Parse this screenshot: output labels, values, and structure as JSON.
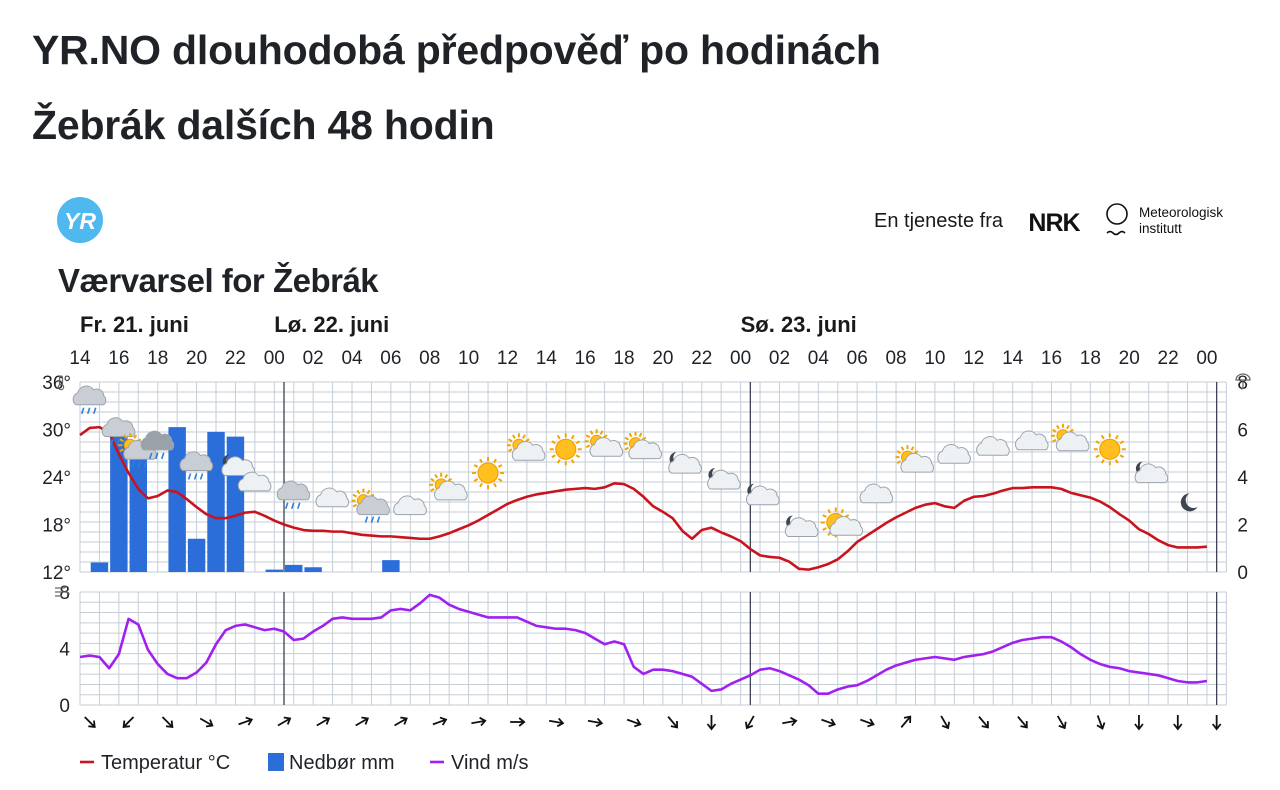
{
  "page": {
    "title_line1": "YR.NO dlouhodobá předpověď po hodinách",
    "title_line2": "Žebrák dalších 48 hodin"
  },
  "widget": {
    "logo_text": "YR",
    "service_label": "En tjeneste fra",
    "nrk_logo_text": "NRK",
    "met_logo_line1": "Meteorologisk",
    "met_logo_line2": "institutt",
    "heading": "Værvarsel for Žebrák"
  },
  "colors": {
    "temperature": "#c8141e",
    "precipitation": "#2b6ed9",
    "wind": "#a020f0",
    "grid": "#c5cdd6",
    "midnight_line": "#3a4452",
    "yr_logo": "#4fb8ef"
  },
  "chart_data": {
    "type": "line",
    "days": [
      {
        "label": "Fr. 21. juni",
        "start_hour_index": 0
      },
      {
        "label": "Lø. 22. juni",
        "start_hour_index": 10
      },
      {
        "label": "Sø. 23. juni",
        "start_hour_index": 34
      }
    ],
    "time_tick_labels": [
      "14",
      "16",
      "18",
      "20",
      "22",
      "00",
      "02",
      "04",
      "06",
      "08",
      "10",
      "12",
      "14",
      "16",
      "18",
      "20",
      "22",
      "00",
      "02",
      "04",
      "06",
      "08",
      "10",
      "12",
      "14",
      "16",
      "18",
      "20",
      "22",
      "00"
    ],
    "temperature_axis": {
      "ticks": [
        12,
        18,
        24,
        30,
        36
      ],
      "unit_suffix": "°",
      "range": [
        12,
        36
      ]
    },
    "precipitation_axis": {
      "ticks": [
        0,
        2,
        4,
        6,
        8
      ],
      "range": [
        0,
        8
      ]
    },
    "wind_axis": {
      "ticks": [
        0,
        4,
        8
      ],
      "range": [
        0,
        8
      ]
    },
    "hours_from_14": [
      0,
      0.5,
      1,
      1.5,
      2,
      2.5,
      3,
      3.5,
      4,
      4.5,
      5,
      5.5,
      6,
      6.5,
      7,
      7.5,
      8,
      8.5,
      9,
      9.5,
      10,
      10.5,
      11,
      11.5,
      12,
      12.5,
      13,
      13.5,
      14,
      14.5,
      15,
      15.5,
      16,
      16.5,
      17,
      17.5,
      18,
      18.5,
      19,
      19.5,
      20,
      20.5,
      21,
      21.5,
      22,
      22.5,
      23,
      23.5,
      24,
      24.5,
      25,
      25.5,
      26,
      26.5,
      27,
      27.5,
      28,
      28.5,
      29,
      29.5,
      30,
      30.5,
      31,
      31.5,
      32,
      32.5,
      33,
      33.5,
      34,
      34.5,
      35,
      35.5,
      36,
      36.5,
      37,
      37.5,
      38,
      38.5,
      39,
      39.5,
      40,
      40.5,
      41,
      41.5,
      42,
      42.5,
      43,
      43.5,
      44,
      44.5,
      45,
      45.5,
      46,
      46.5,
      47,
      47.5,
      48,
      48.5,
      49,
      49.5,
      50,
      50.5,
      51,
      51.5,
      52,
      52.5,
      53,
      53.5,
      54,
      54.5,
      55,
      55.5,
      56,
      56.5,
      57,
      57.5,
      58
    ],
    "temperature": [
      29.3,
      30.2,
      30.3,
      29.6,
      26.9,
      24.5,
      22.5,
      21.3,
      21.6,
      22.3,
      22.1,
      21.2,
      20.2,
      19.3,
      18.8,
      18.8,
      19.1,
      19.5,
      19.6,
      19.1,
      18.5,
      18,
      17.6,
      17.3,
      17.2,
      17.2,
      17.1,
      17.1,
      16.9,
      16.7,
      16.6,
      16.5,
      16.5,
      16.4,
      16.3,
      16.2,
      16.2,
      16.5,
      16.9,
      17.4,
      17.9,
      18.5,
      19.2,
      19.9,
      20.6,
      21.1,
      21.5,
      21.8,
      22,
      22.2,
      22.4,
      22.5,
      22.6,
      22.5,
      22.7,
      23.2,
      23.1,
      22.5,
      21.5,
      20.3,
      19.6,
      18.8,
      17.2,
      16.2,
      17.3,
      17.6,
      17,
      16.5,
      15.9,
      14.9,
      14.1,
      13.9,
      13.8,
      13.3,
      12.4,
      12.3,
      12.6,
      13,
      13.6,
      14.6,
      15.8,
      16.6,
      17.4,
      18.2,
      18.9,
      19.5,
      20.1,
      20.5,
      20.7,
      20.3,
      20.1,
      21,
      21.5,
      21.6,
      21.9,
      22.3,
      22.6,
      22.6,
      22.7,
      22.7,
      22.7,
      22.5,
      22,
      21.7,
      21.4,
      20.9,
      20.2,
      19.3,
      18.5,
      17.4,
      16.8,
      16,
      15.4,
      15.1,
      15.1,
      15.1,
      15.2
    ],
    "precipitation_hours": [
      1,
      2,
      3,
      4,
      5,
      6,
      7,
      8,
      10,
      11,
      12,
      13,
      14,
      15,
      16,
      17,
      18
    ],
    "precipitation": [
      0.4,
      5.7,
      5.5,
      0,
      6.1,
      1.4,
      5.9,
      5.7,
      0.1,
      0.3,
      0.2,
      0,
      0,
      0,
      0.5,
      0,
      0
    ],
    "wind": [
      3.4,
      3.5,
      3.4,
      2.6,
      3.6,
      6.1,
      5.7,
      3.9,
      2.9,
      2.2,
      1.9,
      1.9,
      2.3,
      3,
      4.3,
      5.3,
      5.6,
      5.7,
      5.5,
      5.3,
      5.4,
      5.2,
      4.6,
      4.7,
      5.2,
      5.6,
      6.1,
      6.2,
      6.1,
      6.1,
      6.1,
      6.2,
      6.7,
      6.8,
      6.7,
      7.2,
      7.8,
      7.6,
      7.1,
      6.8,
      6.6,
      6.4,
      6.2,
      6.2,
      6.2,
      6.2,
      5.9,
      5.6,
      5.5,
      5.4,
      5.4,
      5.3,
      5.1,
      4.7,
      4.3,
      4.5,
      4.3,
      2.7,
      2.2,
      2.5,
      2.5,
      2.4,
      2.2,
      2,
      1.5,
      1,
      1.1,
      1.5,
      1.8,
      2.1,
      2.5,
      2.6,
      2.4,
      2.1,
      1.8,
      1.4,
      0.8,
      0.8,
      1.1,
      1.3,
      1.4,
      1.7,
      2.1,
      2.5,
      2.8,
      3,
      3.2,
      3.3,
      3.4,
      3.3,
      3.2,
      3.4,
      3.5,
      3.6,
      3.8,
      4.1,
      4.4,
      4.6,
      4.7,
      4.8,
      4.8,
      4.5,
      4.1,
      3.6,
      3.2,
      2.9,
      2.7,
      2.6,
      2.4,
      2.3,
      2.2,
      2.1,
      1.9,
      1.7,
      1.6,
      1.6,
      1.7
    ],
    "weather_symbols": [
      {
        "hour": 0.5,
        "kind": "rain",
        "temp": 33.5
      },
      {
        "hour": 2,
        "kind": "rain",
        "temp": 29.5
      },
      {
        "hour": 3,
        "kind": "partly-sunny-rain",
        "temp": 27
      },
      {
        "hour": 4,
        "kind": "rain-heavy-cloud",
        "temp": 27.8
      },
      {
        "hour": 6,
        "kind": "rain",
        "temp": 25.2
      },
      {
        "hour": 8,
        "kind": "partly-night",
        "temp": 25.2
      },
      {
        "hour": 9,
        "kind": "cloudy",
        "temp": 23
      },
      {
        "hour": 11,
        "kind": "rain",
        "temp": 21.5
      },
      {
        "hour": 13,
        "kind": "cloudy",
        "temp": 21
      },
      {
        "hour": 15,
        "kind": "partly-sunny-rain",
        "temp": 20
      },
      {
        "hour": 17,
        "kind": "cloudy",
        "temp": 20
      },
      {
        "hour": 19,
        "kind": "partly-sunny",
        "temp": 22
      },
      {
        "hour": 21,
        "kind": "sun",
        "temp": 24.5
      },
      {
        "hour": 23,
        "kind": "partly-sunny",
        "temp": 27
      },
      {
        "hour": 25,
        "kind": "sun",
        "temp": 27.5
      },
      {
        "hour": 27,
        "kind": "partly-sunny",
        "temp": 27.5
      },
      {
        "hour": 29,
        "kind": "partly-sunny",
        "temp": 27.2
      },
      {
        "hour": 31,
        "kind": "partly-night",
        "temp": 25.5
      },
      {
        "hour": 33,
        "kind": "partly-night",
        "temp": 23.5
      },
      {
        "hour": 35,
        "kind": "partly-night",
        "temp": 21.5
      },
      {
        "hour": 37,
        "kind": "partly-night",
        "temp": 17.5
      },
      {
        "hour": 39,
        "kind": "sun-cloud",
        "temp": 18
      },
      {
        "hour": 41,
        "kind": "cloudy",
        "temp": 21.5
      },
      {
        "hour": 43,
        "kind": "partly-sunny",
        "temp": 25.5
      },
      {
        "hour": 45,
        "kind": "cloudy",
        "temp": 26.5
      },
      {
        "hour": 47,
        "kind": "cloudy",
        "temp": 27.5
      },
      {
        "hour": 49,
        "kind": "cloudy",
        "temp": 28.2
      },
      {
        "hour": 51,
        "kind": "partly-sunny",
        "temp": 28.2
      },
      {
        "hour": 53,
        "kind": "sun",
        "temp": 27.5
      },
      {
        "hour": 55,
        "kind": "partly-night",
        "temp": 24.3
      },
      {
        "hour": 57,
        "kind": "moon",
        "temp": 20.8
      }
    ],
    "wind_arrow_hours": [
      1,
      3,
      5,
      7,
      9,
      11,
      13,
      15,
      17,
      19,
      21,
      23,
      25,
      27,
      29,
      31,
      33,
      35,
      37,
      39,
      41,
      43,
      45,
      47,
      49,
      51,
      53,
      55,
      57,
      59
    ],
    "wind_directions_deg": [
      315,
      45,
      315,
      300,
      250,
      240,
      240,
      240,
      240,
      250,
      260,
      270,
      280,
      280,
      290,
      320,
      360,
      30,
      260,
      290,
      290,
      220,
      330,
      320,
      320,
      330,
      340,
      360,
      0,
      0
    ],
    "legend": [
      {
        "label": "Temperatur °C",
        "kind": "line",
        "color_key": "temperature"
      },
      {
        "label": "Nedbør mm",
        "kind": "box",
        "color_key": "precipitation"
      },
      {
        "label": "Vind m/s",
        "kind": "line",
        "color_key": "wind"
      }
    ],
    "grid": true,
    "midnight_markers_at_hour": [
      10,
      34
    ]
  }
}
